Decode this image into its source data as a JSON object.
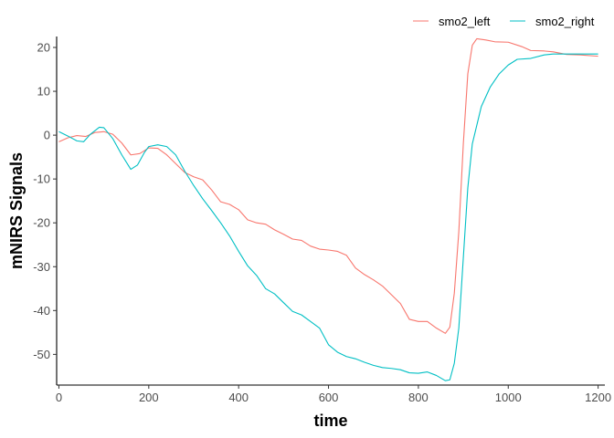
{
  "chart_data": {
    "type": "line",
    "title": "",
    "xlabel": "time",
    "ylabel": "mNIRS Signals",
    "xlim": [
      -5,
      1215
    ],
    "ylim": [
      -57,
      22.5
    ],
    "xticks": [
      0,
      200,
      400,
      600,
      800,
      1000,
      1200
    ],
    "yticks": [
      -50,
      -40,
      -30,
      -20,
      -10,
      0,
      10,
      20
    ],
    "grid": false,
    "legend_position": "top-right",
    "series": [
      {
        "name": "smo2_left",
        "color": "#F8766D",
        "points": [
          [
            0,
            -1.5
          ],
          [
            20,
            -0.6
          ],
          [
            40,
            -0.1
          ],
          [
            60,
            -0.3
          ],
          [
            80,
            0.6
          ],
          [
            100,
            0.8
          ],
          [
            120,
            0.2
          ],
          [
            140,
            -1.8
          ],
          [
            160,
            -4.5
          ],
          [
            180,
            -4.2
          ],
          [
            200,
            -2.9
          ],
          [
            220,
            -3.0
          ],
          [
            240,
            -4.5
          ],
          [
            260,
            -6.5
          ],
          [
            280,
            -8.5
          ],
          [
            300,
            -9.5
          ],
          [
            320,
            -10.2
          ],
          [
            340,
            -12.5
          ],
          [
            360,
            -15.2
          ],
          [
            380,
            -15.8
          ],
          [
            400,
            -17.0
          ],
          [
            420,
            -19.3
          ],
          [
            440,
            -20.0
          ],
          [
            460,
            -20.3
          ],
          [
            480,
            -21.6
          ],
          [
            500,
            -22.6
          ],
          [
            520,
            -23.7
          ],
          [
            540,
            -24.0
          ],
          [
            560,
            -25.3
          ],
          [
            580,
            -26.0
          ],
          [
            600,
            -26.2
          ],
          [
            620,
            -26.5
          ],
          [
            640,
            -27.4
          ],
          [
            660,
            -30.3
          ],
          [
            680,
            -31.8
          ],
          [
            700,
            -33.0
          ],
          [
            720,
            -34.4
          ],
          [
            740,
            -36.4
          ],
          [
            760,
            -38.4
          ],
          [
            780,
            -42.0
          ],
          [
            800,
            -42.5
          ],
          [
            820,
            -42.5
          ],
          [
            840,
            -44.0
          ],
          [
            860,
            -45.2
          ],
          [
            870,
            -43.8
          ],
          [
            880,
            -36.0
          ],
          [
            890,
            -22.0
          ],
          [
            900,
            -2.0
          ],
          [
            910,
            14.0
          ],
          [
            920,
            20.5
          ],
          [
            930,
            22.0
          ],
          [
            950,
            21.7
          ],
          [
            970,
            21.3
          ],
          [
            1000,
            21.2
          ],
          [
            1030,
            20.2
          ],
          [
            1050,
            19.3
          ],
          [
            1080,
            19.2
          ],
          [
            1100,
            19.0
          ],
          [
            1130,
            18.4
          ],
          [
            1160,
            18.3
          ],
          [
            1200,
            18.0
          ]
        ]
      },
      {
        "name": "smo2_right",
        "color": "#00BFC4",
        "points": [
          [
            0,
            0.8
          ],
          [
            20,
            -0.2
          ],
          [
            40,
            -1.3
          ],
          [
            55,
            -1.5
          ],
          [
            70,
            0.2
          ],
          [
            90,
            1.8
          ],
          [
            100,
            1.7
          ],
          [
            120,
            -0.8
          ],
          [
            140,
            -4.5
          ],
          [
            160,
            -7.8
          ],
          [
            175,
            -6.8
          ],
          [
            190,
            -4.0
          ],
          [
            200,
            -2.6
          ],
          [
            220,
            -2.2
          ],
          [
            240,
            -2.6
          ],
          [
            260,
            -4.5
          ],
          [
            280,
            -8.2
          ],
          [
            300,
            -11.5
          ],
          [
            320,
            -14.5
          ],
          [
            340,
            -17.2
          ],
          [
            360,
            -20.0
          ],
          [
            380,
            -23.0
          ],
          [
            400,
            -26.5
          ],
          [
            420,
            -29.8
          ],
          [
            440,
            -32.0
          ],
          [
            460,
            -35.0
          ],
          [
            480,
            -36.2
          ],
          [
            500,
            -38.2
          ],
          [
            520,
            -40.2
          ],
          [
            540,
            -41.0
          ],
          [
            560,
            -42.5
          ],
          [
            580,
            -44.0
          ],
          [
            600,
            -47.8
          ],
          [
            620,
            -49.5
          ],
          [
            640,
            -50.5
          ],
          [
            660,
            -51.0
          ],
          [
            680,
            -51.8
          ],
          [
            700,
            -52.5
          ],
          [
            720,
            -53.0
          ],
          [
            740,
            -53.2
          ],
          [
            760,
            -53.5
          ],
          [
            780,
            -54.2
          ],
          [
            800,
            -54.3
          ],
          [
            820,
            -54.0
          ],
          [
            840,
            -54.8
          ],
          [
            860,
            -56.0
          ],
          [
            870,
            -55.8
          ],
          [
            880,
            -52.0
          ],
          [
            890,
            -44.0
          ],
          [
            900,
            -28.0
          ],
          [
            910,
            -12.0
          ],
          [
            920,
            -2.0
          ],
          [
            940,
            6.5
          ],
          [
            960,
            11.0
          ],
          [
            980,
            14.0
          ],
          [
            1000,
            16.0
          ],
          [
            1020,
            17.3
          ],
          [
            1050,
            17.5
          ],
          [
            1080,
            18.3
          ],
          [
            1100,
            18.5
          ],
          [
            1150,
            18.5
          ],
          [
            1200,
            18.5
          ]
        ]
      }
    ]
  }
}
